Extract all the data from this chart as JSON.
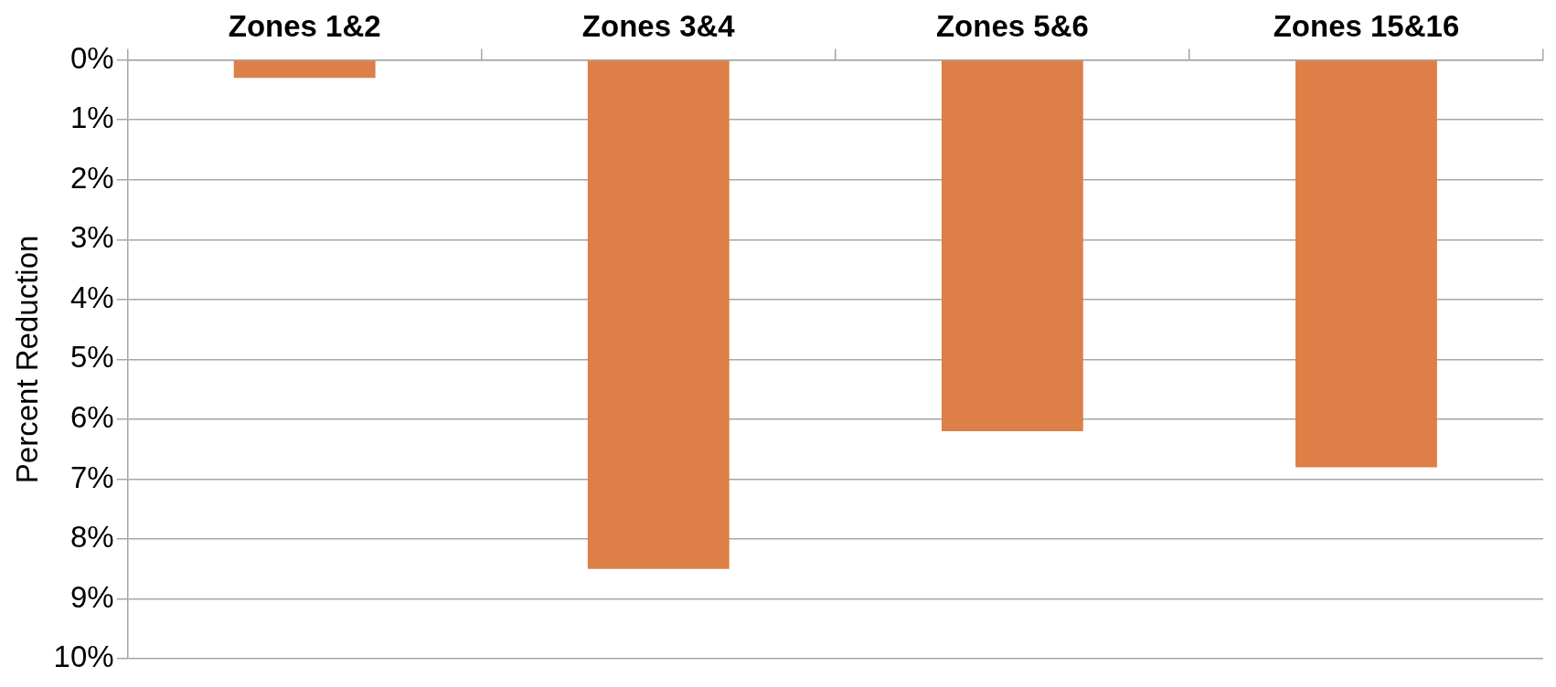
{
  "chart_data": {
    "type": "bar",
    "ylabel": "Percent Reduction",
    "categories": [
      "Zones 1&2",
      "Zones 3&4",
      "Zones 5&6",
      "Zones 15&16"
    ],
    "values": [
      0.3,
      8.5,
      6.2,
      6.8
    ],
    "color": "#dd7f47",
    "ylim": [
      10,
      0
    ],
    "yticks": [
      {
        "value": 0,
        "label": "0%"
      },
      {
        "value": 1,
        "label": "1%"
      },
      {
        "value": 2,
        "label": "2%"
      },
      {
        "value": 3,
        "label": "3%"
      },
      {
        "value": 4,
        "label": "4%"
      },
      {
        "value": 5,
        "label": "5%"
      },
      {
        "value": 6,
        "label": "6%"
      },
      {
        "value": 7,
        "label": "7%"
      },
      {
        "value": 8,
        "label": "8%"
      },
      {
        "value": 9,
        "label": "9%"
      },
      {
        "value": 10,
        "label": "10%"
      }
    ],
    "grid": "y",
    "legend": false
  }
}
